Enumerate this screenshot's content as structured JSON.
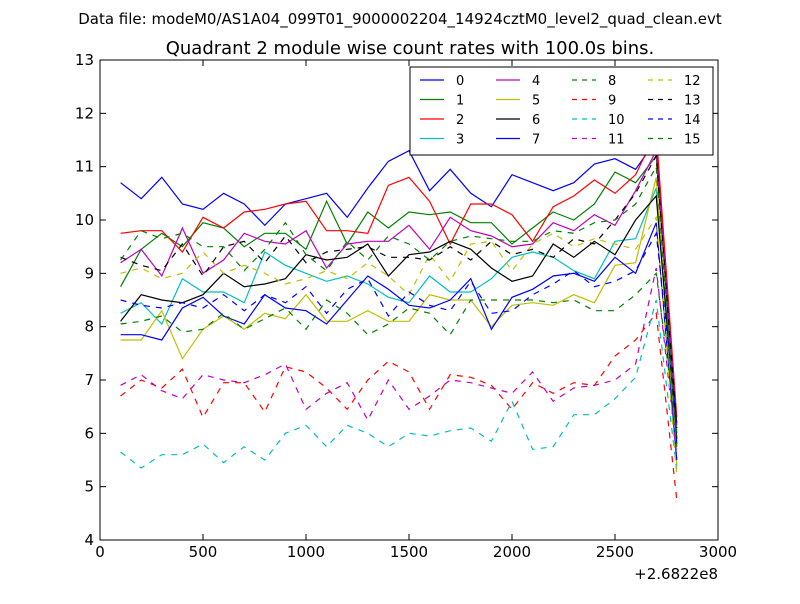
{
  "chart_data": {
    "type": "line",
    "suptitle": "Data file: modeM0/AS1A04_099T01_9000002204_14924cztM0_level2_quad_clean.evt",
    "title": "Quadrant 2 module wise count rates with 100.0s bins.",
    "xlabel": "",
    "ylabel": "",
    "x_offset_label": "+2.6822e8",
    "xlim": [
      0,
      3000
    ],
    "ylim": [
      4,
      13
    ],
    "xticks": [
      "0",
      "500",
      "1000",
      "1500",
      "2000",
      "2500",
      "3000"
    ],
    "yticks": [
      "4",
      "5",
      "6",
      "7",
      "8",
      "9",
      "10",
      "11",
      "12",
      "13"
    ],
    "legend_position": "top-right",
    "grid": false,
    "x": [
      100,
      200,
      300,
      400,
      500,
      600,
      700,
      800,
      900,
      1000,
      1100,
      1200,
      1300,
      1400,
      1500,
      1600,
      1700,
      1800,
      1900,
      2000,
      2100,
      2200,
      2300,
      2400,
      2500,
      2600,
      2700,
      2800
    ],
    "series": [
      {
        "name": "0",
        "color": "#0000ff",
        "dash": "solid",
        "values": [
          10.7,
          10.4,
          10.8,
          10.3,
          10.2,
          10.5,
          10.3,
          9.9,
          10.3,
          10.4,
          10.5,
          10.05,
          10.6,
          11.1,
          11.3,
          10.55,
          10.95,
          10.5,
          10.25,
          10.85,
          10.7,
          10.55,
          10.7,
          11.05,
          11.15,
          10.95,
          11.5,
          5.8
        ]
      },
      {
        "name": "1",
        "color": "#008000",
        "dash": "solid",
        "values": [
          8.75,
          9.45,
          9.75,
          9.5,
          9.95,
          9.85,
          9.5,
          9.75,
          9.75,
          9.45,
          10.35,
          9.55,
          10.15,
          9.85,
          10.15,
          10.1,
          10.15,
          9.95,
          9.95,
          9.55,
          9.85,
          10.15,
          10.0,
          10.3,
          10.9,
          10.7,
          11.2,
          6.0
        ]
      },
      {
        "name": "2",
        "color": "#ff0000",
        "dash": "solid",
        "values": [
          9.75,
          9.8,
          9.8,
          9.4,
          10.05,
          9.85,
          10.15,
          10.2,
          10.3,
          10.35,
          9.8,
          9.8,
          9.75,
          10.65,
          10.8,
          10.35,
          9.55,
          10.3,
          10.3,
          10.1,
          9.6,
          10.25,
          10.45,
          10.75,
          10.5,
          10.85,
          11.65,
          6.3
        ]
      },
      {
        "name": "3",
        "color": "#00bfbf",
        "dash": "solid",
        "values": [
          8.25,
          8.45,
          8.05,
          8.9,
          8.65,
          8.65,
          8.45,
          9.4,
          9.15,
          9.0,
          8.85,
          8.95,
          8.8,
          8.55,
          8.45,
          8.95,
          8.65,
          8.65,
          8.9,
          9.3,
          9.4,
          9.3,
          9.05,
          8.9,
          9.6,
          9.65,
          10.6,
          5.9
        ]
      },
      {
        "name": "4",
        "color": "#bf00bf",
        "dash": "solid",
        "values": [
          9.2,
          9.45,
          8.95,
          9.85,
          9.0,
          9.25,
          9.75,
          9.6,
          9.55,
          9.8,
          9.1,
          9.55,
          9.6,
          9.6,
          9.9,
          9.45,
          10.05,
          9.8,
          9.7,
          9.5,
          9.55,
          9.95,
          9.8,
          10.1,
          9.9,
          10.55,
          11.3,
          6.15
        ]
      },
      {
        "name": "5",
        "color": "#bfbf00",
        "dash": "solid",
        "values": [
          7.75,
          7.75,
          8.3,
          7.4,
          7.95,
          8.2,
          7.95,
          8.25,
          8.15,
          8.6,
          8.1,
          8.1,
          8.3,
          8.1,
          8.1,
          8.6,
          8.5,
          8.5,
          8.0,
          8.4,
          8.45,
          8.4,
          8.6,
          8.45,
          9.15,
          9.2,
          10.8,
          5.4
        ]
      },
      {
        "name": "6",
        "color": "#000000",
        "dash": "solid",
        "values": [
          8.1,
          8.6,
          8.5,
          8.45,
          8.6,
          9.0,
          8.75,
          8.8,
          8.9,
          9.35,
          9.25,
          9.3,
          9.55,
          8.95,
          9.35,
          9.4,
          9.6,
          9.45,
          9.1,
          8.85,
          8.95,
          9.55,
          9.3,
          9.6,
          9.35,
          10.0,
          10.45,
          5.9
        ]
      },
      {
        "name": "7",
        "color": "#0000ff",
        "dash": "solid",
        "values": [
          7.85,
          7.85,
          7.75,
          8.35,
          8.55,
          8.2,
          8.05,
          8.6,
          8.35,
          8.3,
          8.05,
          8.5,
          8.95,
          8.7,
          8.4,
          8.35,
          8.5,
          8.9,
          7.95,
          8.55,
          8.7,
          8.95,
          9.0,
          8.85,
          9.3,
          9.0,
          9.95,
          5.5
        ]
      },
      {
        "name": "8",
        "color": "#008000",
        "dash": "dash",
        "values": [
          8.05,
          8.1,
          8.2,
          7.9,
          7.95,
          8.25,
          7.95,
          8.15,
          8.35,
          7.95,
          8.5,
          8.25,
          7.85,
          8.05,
          8.35,
          8.25,
          7.85,
          8.5,
          8.5,
          8.5,
          8.5,
          8.45,
          8.5,
          8.3,
          8.3,
          8.6,
          9.0,
          6.0
        ]
      },
      {
        "name": "9",
        "color": "#ff0000",
        "dash": "dash",
        "values": [
          6.7,
          7.0,
          6.85,
          7.2,
          6.3,
          6.95,
          6.95,
          6.4,
          7.25,
          7.15,
          6.85,
          6.45,
          7.0,
          7.35,
          7.15,
          6.45,
          7.1,
          7.05,
          6.9,
          6.45,
          6.95,
          6.75,
          6.95,
          6.9,
          7.45,
          7.75,
          8.25,
          4.75
        ]
      },
      {
        "name": "10",
        "color": "#00bfbf",
        "dash": "dash",
        "values": [
          5.65,
          5.35,
          5.6,
          5.6,
          5.8,
          5.45,
          5.75,
          5.5,
          6.0,
          6.15,
          5.75,
          6.15,
          6.0,
          5.75,
          6.0,
          5.95,
          6.05,
          6.1,
          5.85,
          6.6,
          5.7,
          5.75,
          6.35,
          6.35,
          6.65,
          7.05,
          8.5,
          5.3
        ]
      },
      {
        "name": "11",
        "color": "#bf00bf",
        "dash": "dash",
        "values": [
          6.9,
          7.1,
          6.8,
          6.65,
          7.1,
          7.0,
          6.95,
          7.1,
          7.3,
          6.45,
          6.75,
          6.95,
          6.25,
          7.0,
          6.45,
          6.7,
          7.0,
          6.95,
          6.85,
          6.75,
          7.15,
          6.6,
          6.85,
          6.9,
          7.0,
          7.3,
          9.1,
          5.6
        ]
      },
      {
        "name": "12",
        "color": "#bfbf00",
        "dash": "dash",
        "values": [
          9.0,
          9.1,
          8.9,
          9.0,
          9.4,
          9.0,
          9.15,
          9.0,
          8.8,
          8.9,
          9.05,
          8.9,
          9.2,
          8.95,
          8.6,
          9.35,
          8.85,
          9.55,
          9.6,
          9.05,
          9.55,
          9.75,
          9.5,
          9.65,
          9.55,
          9.45,
          10.05,
          5.2
        ]
      },
      {
        "name": "13",
        "color": "#000000",
        "dash": "dash",
        "values": [
          9.3,
          9.15,
          9.05,
          9.55,
          8.95,
          9.5,
          9.6,
          9.2,
          9.7,
          9.2,
          9.4,
          9.45,
          9.5,
          9.3,
          9.3,
          9.25,
          9.5,
          9.25,
          9.6,
          9.35,
          9.45,
          9.3,
          9.65,
          9.55,
          10.0,
          10.5,
          11.2,
          6.1
        ]
      },
      {
        "name": "14",
        "color": "#0000ff",
        "dash": "dash",
        "values": [
          8.5,
          8.4,
          8.35,
          8.45,
          8.35,
          8.6,
          8.3,
          8.6,
          8.45,
          8.75,
          8.25,
          8.7,
          8.9,
          8.2,
          8.65,
          8.4,
          8.3,
          8.85,
          8.25,
          8.3,
          8.6,
          8.8,
          9.05,
          8.75,
          8.85,
          9.05,
          9.75,
          6.2
        ]
      },
      {
        "name": "15",
        "color": "#008000",
        "dash": "dash",
        "values": [
          9.25,
          9.8,
          9.65,
          9.75,
          9.5,
          9.5,
          9.05,
          9.45,
          9.95,
          9.35,
          9.05,
          9.6,
          9.25,
          9.7,
          9.55,
          9.25,
          9.6,
          9.7,
          9.65,
          9.6,
          9.6,
          9.8,
          9.75,
          9.95,
          10.0,
          10.3,
          11.0,
          5.75
        ]
      }
    ]
  }
}
